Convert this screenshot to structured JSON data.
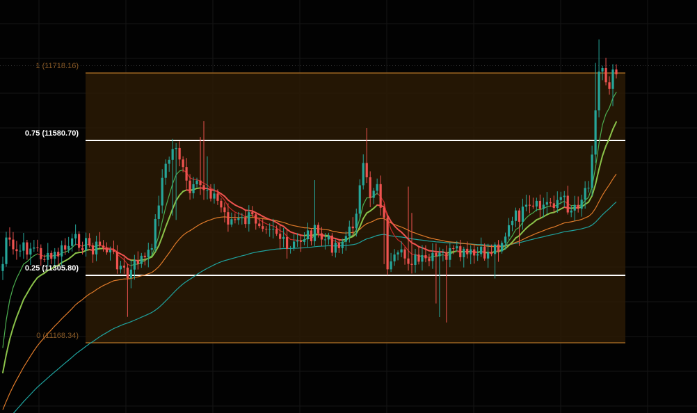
{
  "chart_data": {
    "type": "candlestick",
    "fib_levels": [
      {
        "ratio": "1",
        "price": 11718.16,
        "label": "1 (11718.16)",
        "emphasis": false
      },
      {
        "ratio": "0.75",
        "price": 11580.7,
        "label": "0.75 (11580.70)",
        "emphasis": true
      },
      {
        "ratio": "0.25",
        "price": 11305.8,
        "label": "0.25 (11305.80)",
        "emphasis": true
      },
      {
        "ratio": "0",
        "price": 11168.34,
        "label": "0 (11168.34)",
        "emphasis": false
      }
    ],
    "last_price_line": 11733,
    "ylim": [
      10960,
      11765
    ],
    "colors": {
      "up": "#26a69a",
      "down": "#ef5350",
      "fib_zone_fill": "#2a1a05",
      "fib_outer_line": "#9c6521",
      "fib_inner_line": "#ffffff",
      "fib_outer_label": "#8a5a26",
      "fib_inner_label": "#ffffff",
      "ma_fast": "#4caf50",
      "ma_mid": "#8bc34a",
      "ma_slow": "#e07b2a",
      "ma_long": "#1fa4a0",
      "grid": "#151515",
      "background": "#020202"
    },
    "grid": true
  }
}
